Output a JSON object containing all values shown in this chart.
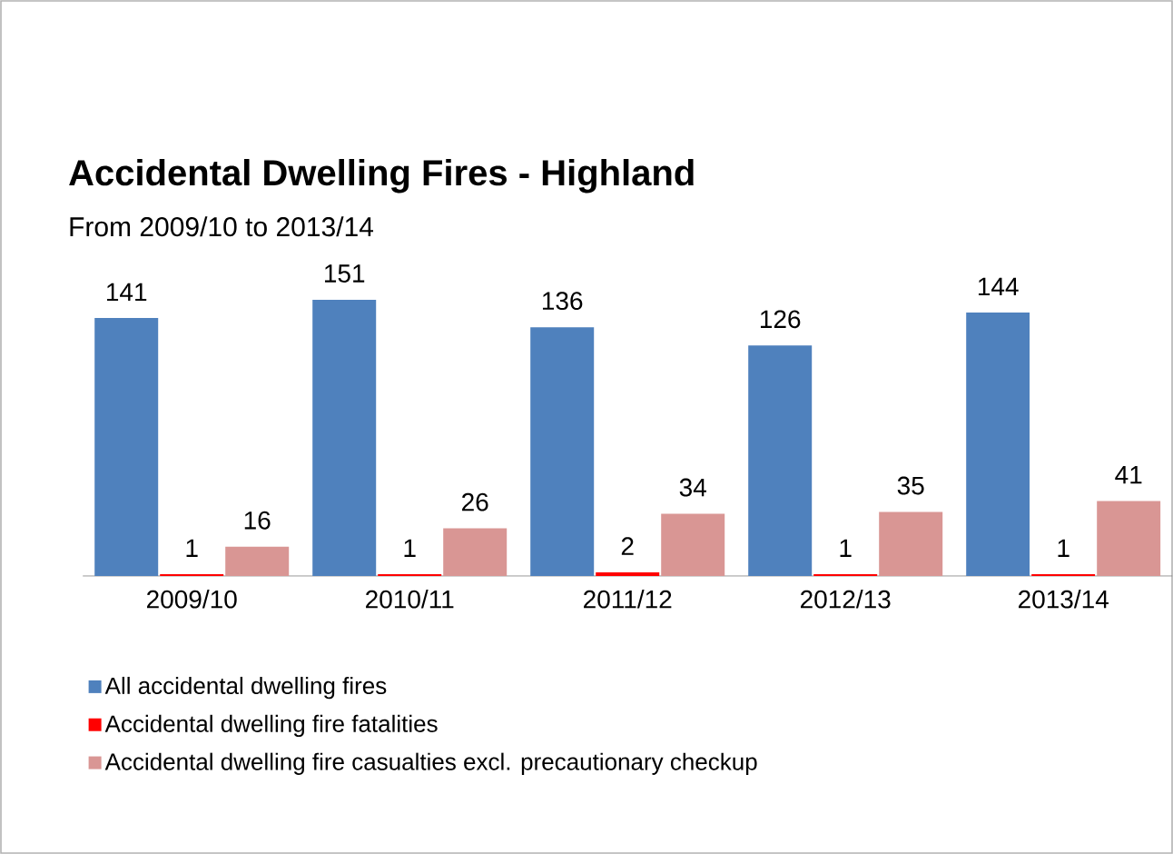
{
  "chart_data": {
    "type": "bar",
    "title": "Accidental Dwelling Fires - Highland",
    "subtitle": "From 2009/10 to 2013/14",
    "categories": [
      "2009/10",
      "2010/11",
      "2011/12",
      "2012/13",
      "2013/14"
    ],
    "series": [
      {
        "name": "All accidental dwelling fires",
        "color": "#4f81bd",
        "values": [
          141,
          151,
          136,
          126,
          144
        ]
      },
      {
        "name": "Accidental dwelling fire fatalities",
        "color": "#ff0000",
        "values": [
          1,
          1,
          2,
          1,
          1
        ]
      },
      {
        "name": "Accidental dwelling fire casualties excl. precautionary checkup",
        "color": "#d99694",
        "values": [
          16,
          26,
          34,
          35,
          41
        ]
      }
    ],
    "data_labels": true,
    "legend": "bottom",
    "tick_labels": "x"
  }
}
